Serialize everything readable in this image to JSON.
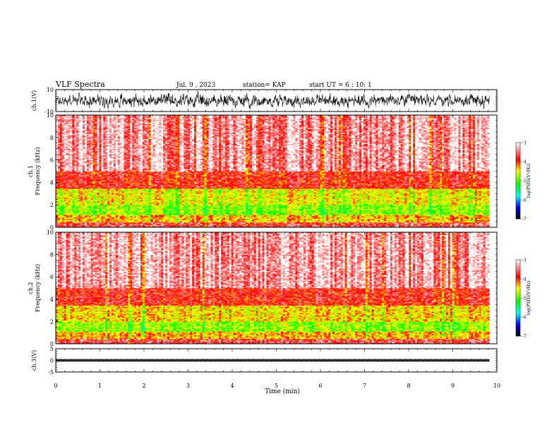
{
  "header": {
    "title": "VLF Spectra",
    "date": "Jul. 9 , 2023",
    "station": "station= KAP",
    "start": "start UT = 6 : 10: 1"
  },
  "colorbar": {
    "label": "log(PSD)(V²/Hz)",
    "ticks": [
      "-3",
      "-4",
      "-5",
      "-6",
      "-7"
    ],
    "colors": [
      "#ffffff",
      "#ff0000",
      "#ffff00",
      "#00ff00",
      "#00ffff",
      "#0000ff",
      "#000000"
    ]
  },
  "chart_data": [
    {
      "type": "line",
      "name": "ch1-waveform",
      "ylabel": "ch.1(V)",
      "ylim": [
        -10,
        10
      ],
      "yticks": [
        "10",
        "-10"
      ],
      "xlim": [
        0,
        10
      ],
      "description_values": {
        "mean": 0,
        "amplitude": 7
      }
    },
    {
      "type": "heatmap",
      "name": "ch1-spectrogram",
      "ylabel_line1": "ch.1",
      "ylabel_line2": "Frequency (kHz)",
      "ylim": [
        0,
        10
      ],
      "yticks": [
        "0",
        "2",
        "4",
        "6",
        "8",
        "10"
      ],
      "xlim": [
        0,
        9.83
      ],
      "value_range": [
        -7,
        -3
      ],
      "bands": [
        {
          "f_low": 0,
          "f_high": 0.5,
          "level": -3.6
        },
        {
          "f_low": 0.5,
          "f_high": 1.1,
          "level": -4.3
        },
        {
          "f_low": 1.1,
          "f_high": 2.0,
          "level": -4.8
        },
        {
          "f_low": 2.0,
          "f_high": 3.4,
          "level": -4.5
        },
        {
          "f_low": 3.4,
          "f_high": 5.0,
          "level": -3.8
        },
        {
          "f_low": 5.0,
          "f_high": 10.0,
          "level": -3.3
        }
      ]
    },
    {
      "type": "heatmap",
      "name": "ch2-spectrogram",
      "ylabel_line1": "ch.2",
      "ylabel_line2": "Frequency (kHz)",
      "ylim": [
        0,
        10
      ],
      "yticks": [
        "0",
        "2",
        "4",
        "6",
        "8",
        "10"
      ],
      "xlim": [
        0,
        9.83
      ],
      "value_range": [
        -7,
        -3
      ],
      "bands": [
        {
          "f_low": 0,
          "f_high": 0.5,
          "level": -3.6
        },
        {
          "f_low": 0.5,
          "f_high": 1.1,
          "level": -4.3
        },
        {
          "f_low": 1.1,
          "f_high": 2.0,
          "level": -4.8
        },
        {
          "f_low": 2.0,
          "f_high": 3.4,
          "level": -4.4
        },
        {
          "f_low": 3.4,
          "f_high": 5.0,
          "level": -3.8
        },
        {
          "f_low": 5.0,
          "f_high": 10.0,
          "level": -3.3
        }
      ]
    },
    {
      "type": "line",
      "name": "ch3-waveform",
      "ylabel": "ch.3(V)",
      "ylim": [
        -5,
        5
      ],
      "yticks": [
        "5",
        "0",
        "-5"
      ],
      "xlim": [
        0,
        10
      ],
      "description_values": {
        "mean": 0,
        "amplitude": 0.6
      }
    }
  ],
  "xaxis": {
    "label": "Time (min)",
    "ticks": [
      "0",
      "1",
      "2",
      "3",
      "4",
      "5",
      "6",
      "7",
      "8",
      "9",
      "10"
    ],
    "data_end": 9.83
  }
}
